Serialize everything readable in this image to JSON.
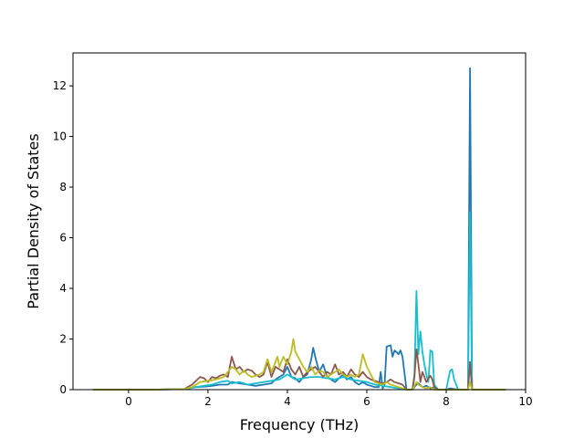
{
  "chart_data": {
    "type": "line",
    "title": "",
    "xlabel": "Frequency (THz)",
    "ylabel": "Partial Density of States",
    "xlim": [
      -1.4,
      10.0
    ],
    "ylim": [
      0,
      13.3
    ],
    "xticks": [
      0,
      2,
      4,
      6,
      8,
      10
    ],
    "yticks": [
      0,
      2,
      4,
      6,
      8,
      10,
      12
    ],
    "grid": false,
    "legend": "none",
    "series": [
      {
        "color": "#1f77b4",
        "points": [
          [
            -0.9,
            0
          ],
          [
            0.6,
            0
          ],
          [
            1.4,
            0.02
          ],
          [
            1.7,
            0.1
          ],
          [
            1.9,
            0.12
          ],
          [
            2.1,
            0.15
          ],
          [
            2.3,
            0.2
          ],
          [
            2.5,
            0.2
          ],
          [
            2.6,
            0.3
          ],
          [
            2.8,
            0.25
          ],
          [
            3.0,
            0.2
          ],
          [
            3.2,
            0.15
          ],
          [
            3.4,
            0.2
          ],
          [
            3.6,
            0.25
          ],
          [
            3.7,
            0.4
          ],
          [
            3.8,
            0.5
          ],
          [
            3.9,
            0.6
          ],
          [
            4.0,
            0.9
          ],
          [
            4.1,
            0.5
          ],
          [
            4.2,
            0.45
          ],
          [
            4.3,
            0.3
          ],
          [
            4.4,
            0.5
          ],
          [
            4.5,
            0.6
          ],
          [
            4.6,
            1.2
          ],
          [
            4.65,
            1.65
          ],
          [
            4.7,
            1.3
          ],
          [
            4.8,
            0.7
          ],
          [
            4.9,
            1.0
          ],
          [
            5.0,
            0.5
          ],
          [
            5.1,
            0.4
          ],
          [
            5.2,
            0.3
          ],
          [
            5.3,
            0.45
          ],
          [
            5.4,
            0.6
          ],
          [
            5.5,
            0.4
          ],
          [
            5.6,
            0.5
          ],
          [
            5.7,
            0.3
          ],
          [
            5.8,
            0.2
          ],
          [
            5.9,
            0.3
          ],
          [
            6.0,
            0.2
          ],
          [
            6.1,
            0.15
          ],
          [
            6.2,
            0.1
          ],
          [
            6.3,
            0.1
          ],
          [
            6.35,
            0.7
          ],
          [
            6.4,
            0.05
          ],
          [
            6.45,
            0.2
          ],
          [
            6.5,
            1.7
          ],
          [
            6.6,
            1.75
          ],
          [
            6.65,
            1.3
          ],
          [
            6.7,
            1.55
          ],
          [
            6.8,
            1.4
          ],
          [
            6.85,
            1.55
          ],
          [
            6.9,
            1.3
          ],
          [
            7.0,
            0
          ],
          [
            7.15,
            0
          ],
          [
            7.25,
            0.2
          ],
          [
            7.3,
            0.25
          ],
          [
            7.4,
            0.1
          ],
          [
            7.5,
            0.15
          ],
          [
            7.6,
            0.05
          ],
          [
            7.7,
            0.1
          ],
          [
            7.8,
            0
          ],
          [
            8.0,
            0
          ],
          [
            8.1,
            0.05
          ],
          [
            8.3,
            0
          ],
          [
            8.55,
            0
          ],
          [
            8.6,
            12.7
          ],
          [
            8.65,
            0
          ],
          [
            9.0,
            0
          ],
          [
            9.5,
            0
          ]
        ]
      },
      {
        "color": "#17becf",
        "points": [
          [
            -0.9,
            0
          ],
          [
            0.6,
            0
          ],
          [
            1.4,
            0.02
          ],
          [
            1.7,
            0.1
          ],
          [
            1.9,
            0.15
          ],
          [
            2.1,
            0.2
          ],
          [
            2.3,
            0.3
          ],
          [
            2.5,
            0.35
          ],
          [
            2.6,
            0.25
          ],
          [
            2.8,
            0.3
          ],
          [
            3.0,
            0.2
          ],
          [
            3.2,
            0.25
          ],
          [
            3.4,
            0.3
          ],
          [
            3.6,
            0.35
          ],
          [
            3.8,
            0.4
          ],
          [
            4.0,
            0.6
          ],
          [
            4.2,
            0.4
          ],
          [
            4.4,
            0.45
          ],
          [
            4.6,
            0.5
          ],
          [
            4.8,
            0.5
          ],
          [
            5.0,
            0.45
          ],
          [
            5.2,
            0.4
          ],
          [
            5.4,
            0.5
          ],
          [
            5.6,
            0.4
          ],
          [
            5.8,
            0.35
          ],
          [
            6.0,
            0.3
          ],
          [
            6.2,
            0.2
          ],
          [
            6.4,
            0.15
          ],
          [
            6.6,
            0.1
          ],
          [
            6.8,
            0.05
          ],
          [
            7.0,
            0
          ],
          [
            7.15,
            0
          ],
          [
            7.2,
            0.6
          ],
          [
            7.25,
            3.9
          ],
          [
            7.3,
            1.4
          ],
          [
            7.35,
            2.3
          ],
          [
            7.4,
            1.5
          ],
          [
            7.45,
            1.0
          ],
          [
            7.5,
            0.6
          ],
          [
            7.55,
            0.3
          ],
          [
            7.6,
            1.55
          ],
          [
            7.65,
            1.5
          ],
          [
            7.7,
            0.2
          ],
          [
            7.8,
            0
          ],
          [
            8.0,
            0
          ],
          [
            8.05,
            0.4
          ],
          [
            8.1,
            0.75
          ],
          [
            8.15,
            0.8
          ],
          [
            8.2,
            0.4
          ],
          [
            8.3,
            0
          ],
          [
            8.55,
            0
          ],
          [
            8.6,
            7.0
          ],
          [
            8.65,
            0
          ],
          [
            9.0,
            0
          ],
          [
            9.5,
            0
          ]
        ]
      },
      {
        "color": "#8c564b",
        "points": [
          [
            -0.9,
            0
          ],
          [
            0.6,
            0
          ],
          [
            1.4,
            0.02
          ],
          [
            1.6,
            0.2
          ],
          [
            1.8,
            0.5
          ],
          [
            1.9,
            0.45
          ],
          [
            2.0,
            0.3
          ],
          [
            2.1,
            0.5
          ],
          [
            2.2,
            0.45
          ],
          [
            2.3,
            0.55
          ],
          [
            2.4,
            0.6
          ],
          [
            2.5,
            0.5
          ],
          [
            2.6,
            1.3
          ],
          [
            2.7,
            0.8
          ],
          [
            2.8,
            0.9
          ],
          [
            2.9,
            0.7
          ],
          [
            3.0,
            0.8
          ],
          [
            3.1,
            0.75
          ],
          [
            3.2,
            0.6
          ],
          [
            3.3,
            0.5
          ],
          [
            3.4,
            0.6
          ],
          [
            3.5,
            1.1
          ],
          [
            3.6,
            0.5
          ],
          [
            3.7,
            0.9
          ],
          [
            3.8,
            0.8
          ],
          [
            3.9,
            0.7
          ],
          [
            4.0,
            1.2
          ],
          [
            4.1,
            0.8
          ],
          [
            4.2,
            0.6
          ],
          [
            4.3,
            0.9
          ],
          [
            4.4,
            0.5
          ],
          [
            4.5,
            0.7
          ],
          [
            4.6,
            0.8
          ],
          [
            4.7,
            0.9
          ],
          [
            4.8,
            0.7
          ],
          [
            4.9,
            0.5
          ],
          [
            5.0,
            0.7
          ],
          [
            5.1,
            0.6
          ],
          [
            5.2,
            1.0
          ],
          [
            5.3,
            0.6
          ],
          [
            5.4,
            0.7
          ],
          [
            5.5,
            0.5
          ],
          [
            5.6,
            0.8
          ],
          [
            5.7,
            0.6
          ],
          [
            5.8,
            0.5
          ],
          [
            5.9,
            0.7
          ],
          [
            6.0,
            0.5
          ],
          [
            6.1,
            0.4
          ],
          [
            6.2,
            0.35
          ],
          [
            6.3,
            0.3
          ],
          [
            6.4,
            0.25
          ],
          [
            6.5,
            0.3
          ],
          [
            6.6,
            0.4
          ],
          [
            6.7,
            0.3
          ],
          [
            6.8,
            0.25
          ],
          [
            6.9,
            0.2
          ],
          [
            7.0,
            0
          ],
          [
            7.15,
            0
          ],
          [
            7.2,
            0.5
          ],
          [
            7.25,
            1.6
          ],
          [
            7.3,
            1.0
          ],
          [
            7.35,
            0.3
          ],
          [
            7.4,
            0.7
          ],
          [
            7.45,
            0.5
          ],
          [
            7.5,
            0.3
          ],
          [
            7.6,
            0.55
          ],
          [
            7.65,
            0.4
          ],
          [
            7.7,
            0.1
          ],
          [
            7.8,
            0
          ],
          [
            8.0,
            0
          ],
          [
            8.55,
            0
          ],
          [
            8.6,
            1.1
          ],
          [
            8.65,
            0
          ],
          [
            9.0,
            0
          ],
          [
            9.5,
            0
          ]
        ]
      },
      {
        "color": "#bcbd22",
        "points": [
          [
            -0.9,
            0
          ],
          [
            0.6,
            0
          ],
          [
            1.4,
            0.02
          ],
          [
            1.6,
            0.1
          ],
          [
            1.8,
            0.3
          ],
          [
            2.0,
            0.35
          ],
          [
            2.2,
            0.4
          ],
          [
            2.4,
            0.5
          ],
          [
            2.5,
            0.7
          ],
          [
            2.6,
            0.9
          ],
          [
            2.7,
            0.8
          ],
          [
            2.8,
            0.6
          ],
          [
            2.9,
            0.75
          ],
          [
            3.0,
            0.6
          ],
          [
            3.1,
            0.5
          ],
          [
            3.2,
            0.55
          ],
          [
            3.3,
            0.6
          ],
          [
            3.4,
            0.7
          ],
          [
            3.5,
            1.2
          ],
          [
            3.6,
            0.7
          ],
          [
            3.7,
            1.1
          ],
          [
            3.75,
            1.3
          ],
          [
            3.8,
            0.9
          ],
          [
            3.9,
            1.3
          ],
          [
            4.0,
            1.0
          ],
          [
            4.1,
            1.5
          ],
          [
            4.15,
            2.0
          ],
          [
            4.2,
            1.5
          ],
          [
            4.3,
            1.2
          ],
          [
            4.4,
            0.9
          ],
          [
            4.5,
            0.7
          ],
          [
            4.6,
            0.9
          ],
          [
            4.7,
            0.6
          ],
          [
            4.8,
            0.75
          ],
          [
            4.9,
            0.7
          ],
          [
            5.0,
            0.5
          ],
          [
            5.1,
            0.6
          ],
          [
            5.2,
            0.7
          ],
          [
            5.3,
            0.8
          ],
          [
            5.4,
            0.6
          ],
          [
            5.5,
            0.5
          ],
          [
            5.6,
            0.6
          ],
          [
            5.7,
            0.5
          ],
          [
            5.8,
            0.6
          ],
          [
            5.9,
            1.4
          ],
          [
            6.0,
            0.9
          ],
          [
            6.1,
            0.6
          ],
          [
            6.2,
            0.3
          ],
          [
            6.3,
            0.25
          ],
          [
            6.4,
            0.2
          ],
          [
            6.5,
            0.3
          ],
          [
            6.6,
            0.2
          ],
          [
            6.7,
            0.15
          ],
          [
            6.8,
            0.1
          ],
          [
            6.9,
            0.05
          ],
          [
            7.0,
            0
          ],
          [
            7.15,
            0
          ],
          [
            7.25,
            0.3
          ],
          [
            7.3,
            0.2
          ],
          [
            7.4,
            0.1
          ],
          [
            7.5,
            0.05
          ],
          [
            7.6,
            0.1
          ],
          [
            7.7,
            0
          ],
          [
            8.0,
            0
          ],
          [
            8.55,
            0
          ],
          [
            8.6,
            0.3
          ],
          [
            8.65,
            0
          ],
          [
            9.0,
            0
          ],
          [
            9.5,
            0
          ]
        ]
      }
    ]
  }
}
